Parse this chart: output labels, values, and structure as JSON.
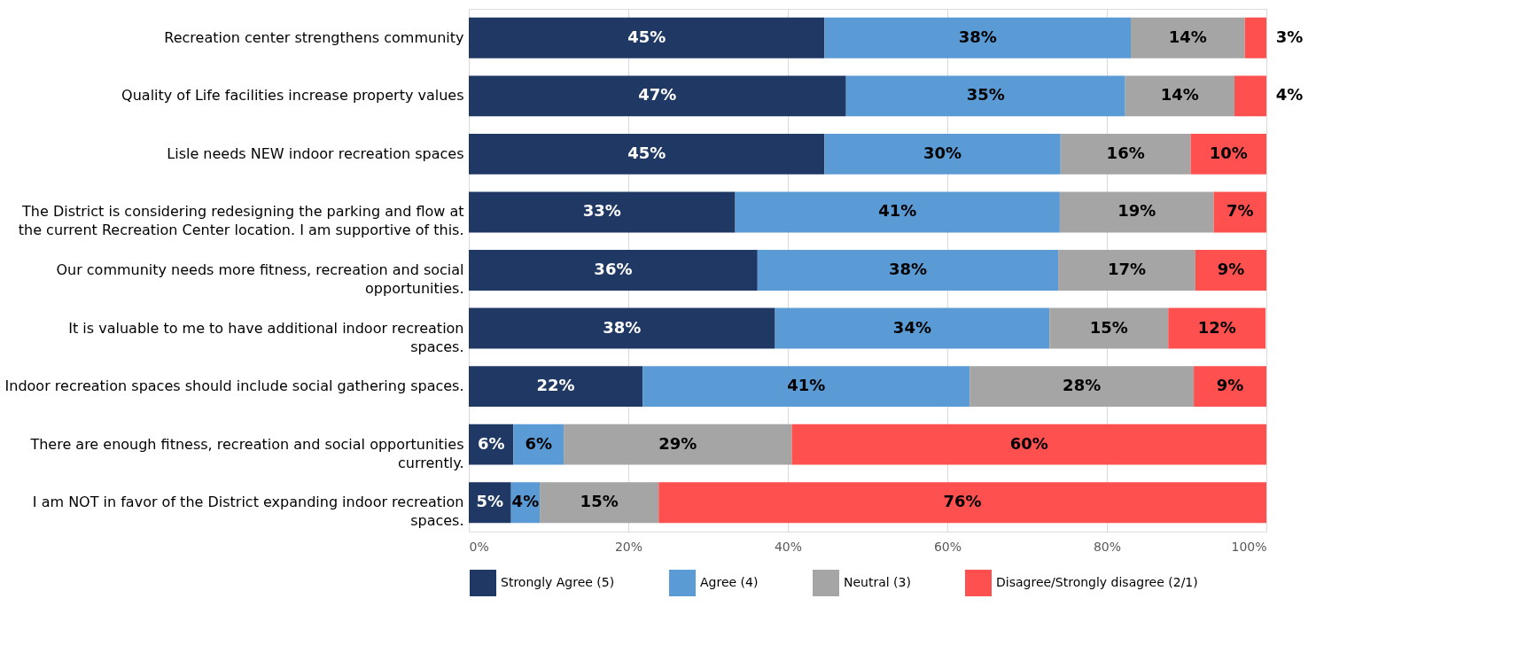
{
  "chart_data": {
    "type": "bar",
    "orientation": "horizontal",
    "stacked": true,
    "categories": [
      "Recreation center strengthens community",
      "Quality of Life facilities increase property values",
      "Lisle needs NEW indoor recreation spaces",
      "The District is considering redesigning the parking and flow at the current Recreation Center location. I am supportive of this.",
      "Our community needs more fitness, recreation and social opportunities.",
      "It is valuable to me to have additional indoor recreation spaces.",
      "Indoor recreation spaces should include social gathering spaces.",
      "There are enough fitness, recreation and social opportunities currently.",
      "I am NOT in favor of the District expanding indoor recreation spaces."
    ],
    "series": [
      {
        "name": "Strongly Agree (5)",
        "color": "#1f3864",
        "values": [
          44.6,
          47.3,
          44.6,
          33.4,
          36.2,
          38.4,
          21.8,
          5.6,
          5.3
        ],
        "value_labels": [
          "45%",
          "47%",
          "45%",
          "33%",
          "36%",
          "38%",
          "22%",
          "6%",
          "5%"
        ]
      },
      {
        "name": "Agree (4)",
        "color": "#5b9bd5",
        "values": [
          38.4,
          35.0,
          29.6,
          40.7,
          37.7,
          34.4,
          41.0,
          6.3,
          3.6
        ],
        "value_labels": [
          "38%",
          "35%",
          "30%",
          "41%",
          "38%",
          "34%",
          "41%",
          "6%",
          "4%"
        ]
      },
      {
        "name": "Neutral (3)",
        "color": "#a5a5a5",
        "values": [
          14.3,
          13.7,
          16.3,
          19.3,
          17.2,
          14.9,
          28.1,
          28.6,
          14.9
        ],
        "value_labels": [
          "14%",
          "14%",
          "16%",
          "19%",
          "17%",
          "15%",
          "28%",
          "29%",
          "15%"
        ]
      },
      {
        "name": "Disagree/Strongly disagree (2/1)",
        "color": "#ff5050",
        "values": [
          2.7,
          4.0,
          9.5,
          6.6,
          8.9,
          12.2,
          9.1,
          59.5,
          76.2
        ],
        "value_labels": [
          "3%",
          "4%",
          "10%",
          "7%",
          "9%",
          "12%",
          "9%",
          "60%",
          "76%"
        ]
      }
    ],
    "xlim": [
      0,
      100
    ],
    "xticks": [
      {
        "value": 0,
        "label": "0%"
      },
      {
        "value": 20,
        "label": "20%"
      },
      {
        "value": 40,
        "label": "40%"
      },
      {
        "value": 60,
        "label": "60%"
      },
      {
        "value": 80,
        "label": "80%"
      },
      {
        "value": 100,
        "label": "100%"
      }
    ],
    "grid": "x",
    "legend": "bottom"
  }
}
